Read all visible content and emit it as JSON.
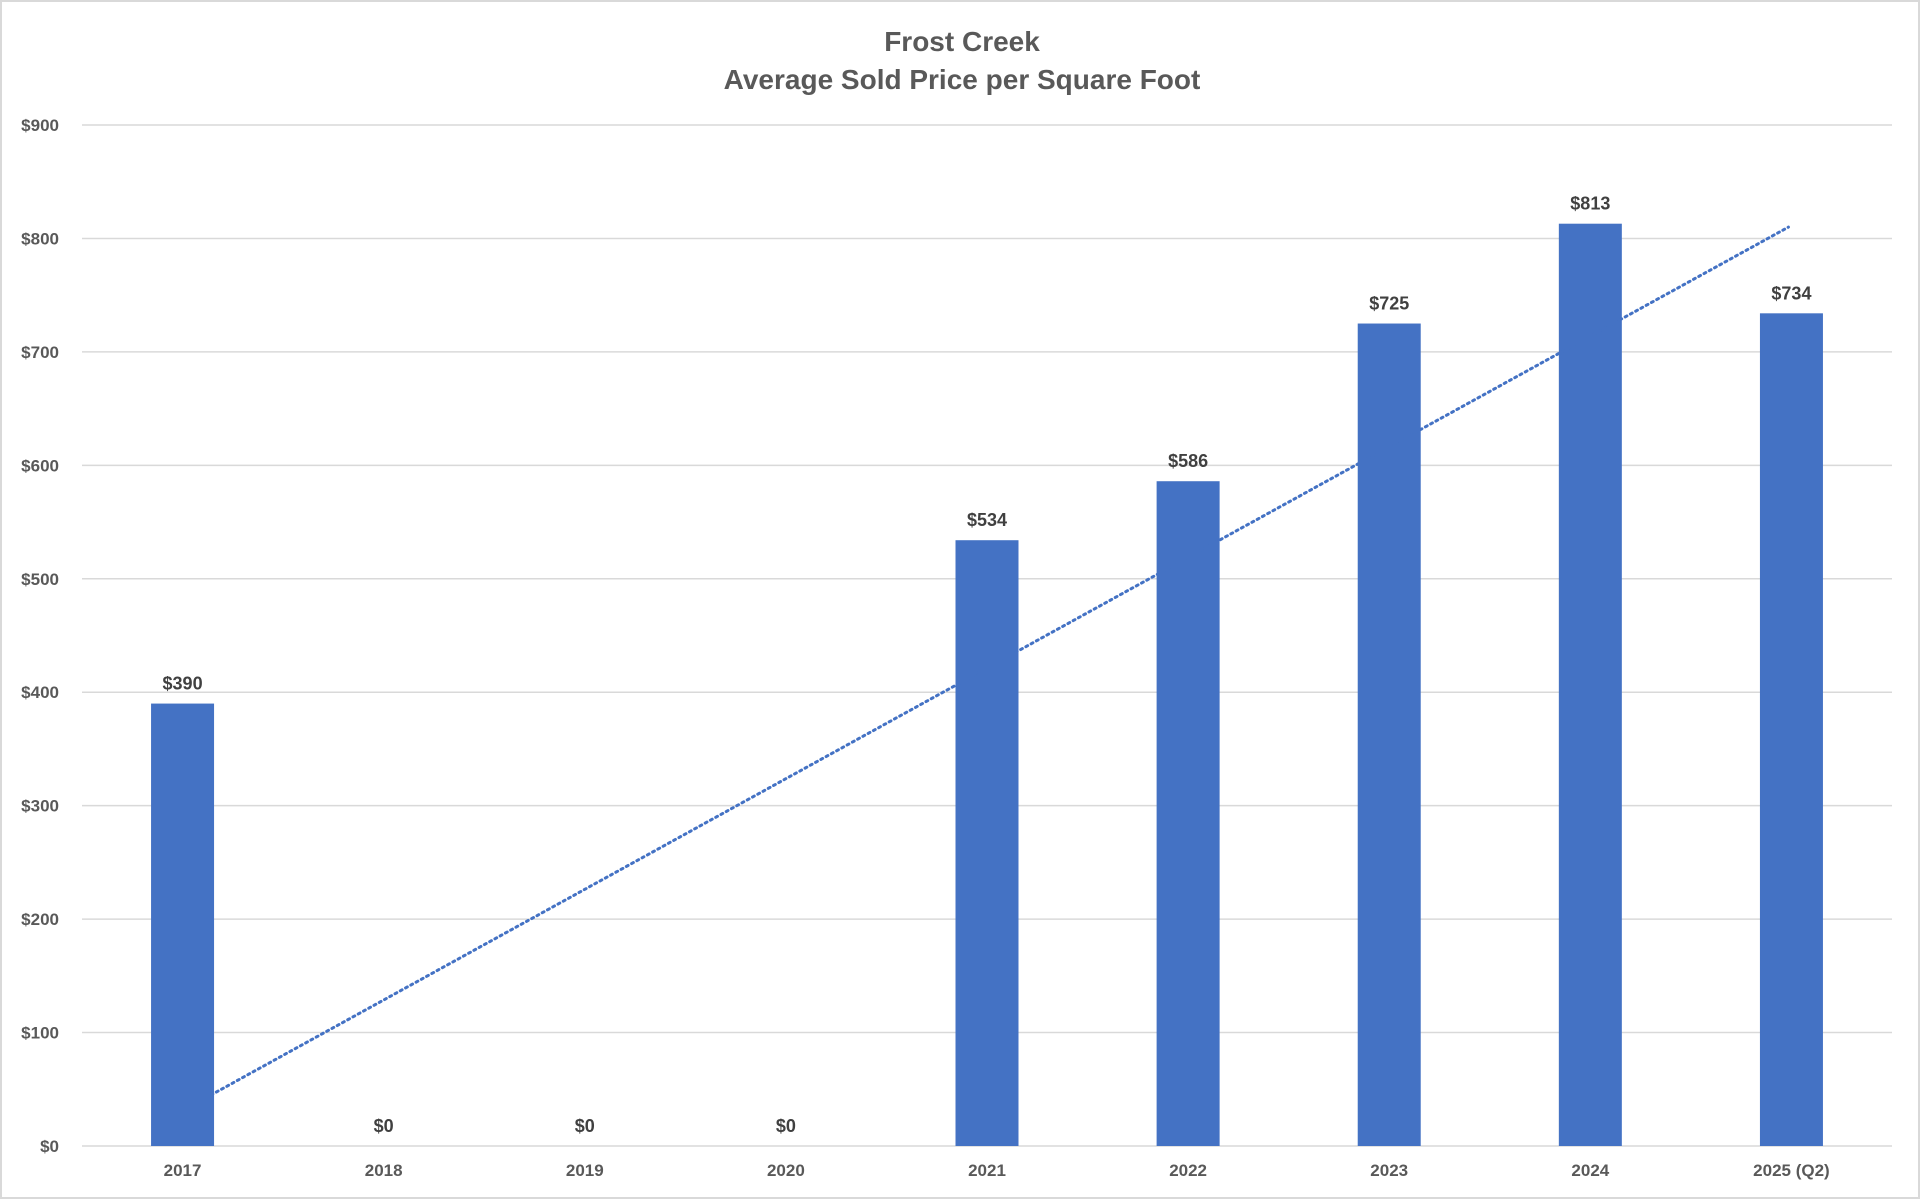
{
  "chart_data": {
    "type": "bar",
    "title": "Frost Creek",
    "subtitle": "Average Sold Price per Square Foot",
    "categories": [
      "2017",
      "2018",
      "2019",
      "2020",
      "2021",
      "2022",
      "2023",
      "2024",
      "2025 (Q2)"
    ],
    "values": [
      390,
      0,
      0,
      0,
      534,
      586,
      725,
      813,
      734
    ],
    "value_labels": [
      "$390",
      "$0",
      "$0",
      "$0",
      "$534",
      "$586",
      "$725",
      "$813",
      "$734"
    ],
    "ylim": [
      0,
      900
    ],
    "yticks": [
      0,
      100,
      200,
      300,
      400,
      500,
      600,
      700,
      800,
      900
    ],
    "ytick_labels": [
      "$0",
      "$100",
      "$200",
      "$300",
      "$400",
      "$500",
      "$600",
      "$700",
      "$800",
      "$900"
    ],
    "xlabel": "",
    "ylabel": "",
    "grid": true,
    "legend": "none",
    "trendline": {
      "type": "linear",
      "style": "dotted",
      "start": {
        "category": "2017",
        "value": 45
      },
      "end": {
        "category": "2025 (Q2)",
        "value": 810
      }
    },
    "colors": {
      "bar": "#4472C4",
      "trendline": "#4472C4",
      "gridline": "#d9d9d9",
      "axis_text": "#595959",
      "label_text": "#404040"
    }
  }
}
